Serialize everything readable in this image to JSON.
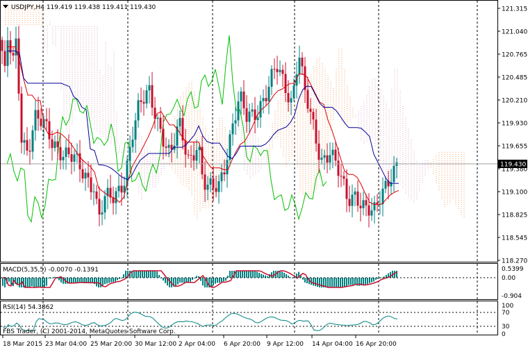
{
  "main_chart": {
    "header": "USDJPY,H4  119.419 119.438 119.411 119.430",
    "price_levels": [
      "121.315",
      "121.040",
      "120.765",
      "120.485",
      "120.210",
      "119.930",
      "119.655",
      "119.380",
      "119.100",
      "118.825",
      "118.545",
      "118.270"
    ],
    "current_price": "119.430",
    "colors": {
      "bull": "#008080",
      "bear": "#c8102e",
      "tenkan": "#d90000",
      "kijun": "#000099",
      "chikou": "#00c000",
      "cloud_up": "#f2a366",
      "cloud_down": "#d9a8c0",
      "price_line": "#a0a0a0",
      "price_box": "#000000"
    }
  },
  "macd": {
    "label": "MACD(5,35,5) -0.0070 -0.1391",
    "levels": [
      "0.5399",
      "0.00",
      "-0.904"
    ],
    "colors": {
      "histogram": "#008080",
      "signal": "#c8102e"
    }
  },
  "rsi": {
    "label": "RSI(14) 54.3862",
    "levels": [
      "100",
      "70",
      "30",
      "0"
    ],
    "copyright": "FBS Trader, (C) 2001-2014, MetaQuotes Software Corp.",
    "colors": {
      "line": "#008080"
    }
  },
  "time_axis": [
    "18 Mar 2015",
    "23 Mar 04:00",
    "25 Mar 20:00",
    "30 Mar 12:00",
    "2 Apr 04:00",
    "6 Apr 20:00",
    "9 Apr 12:00",
    "14 Apr 04:00",
    "16 Apr 20:00"
  ]
}
